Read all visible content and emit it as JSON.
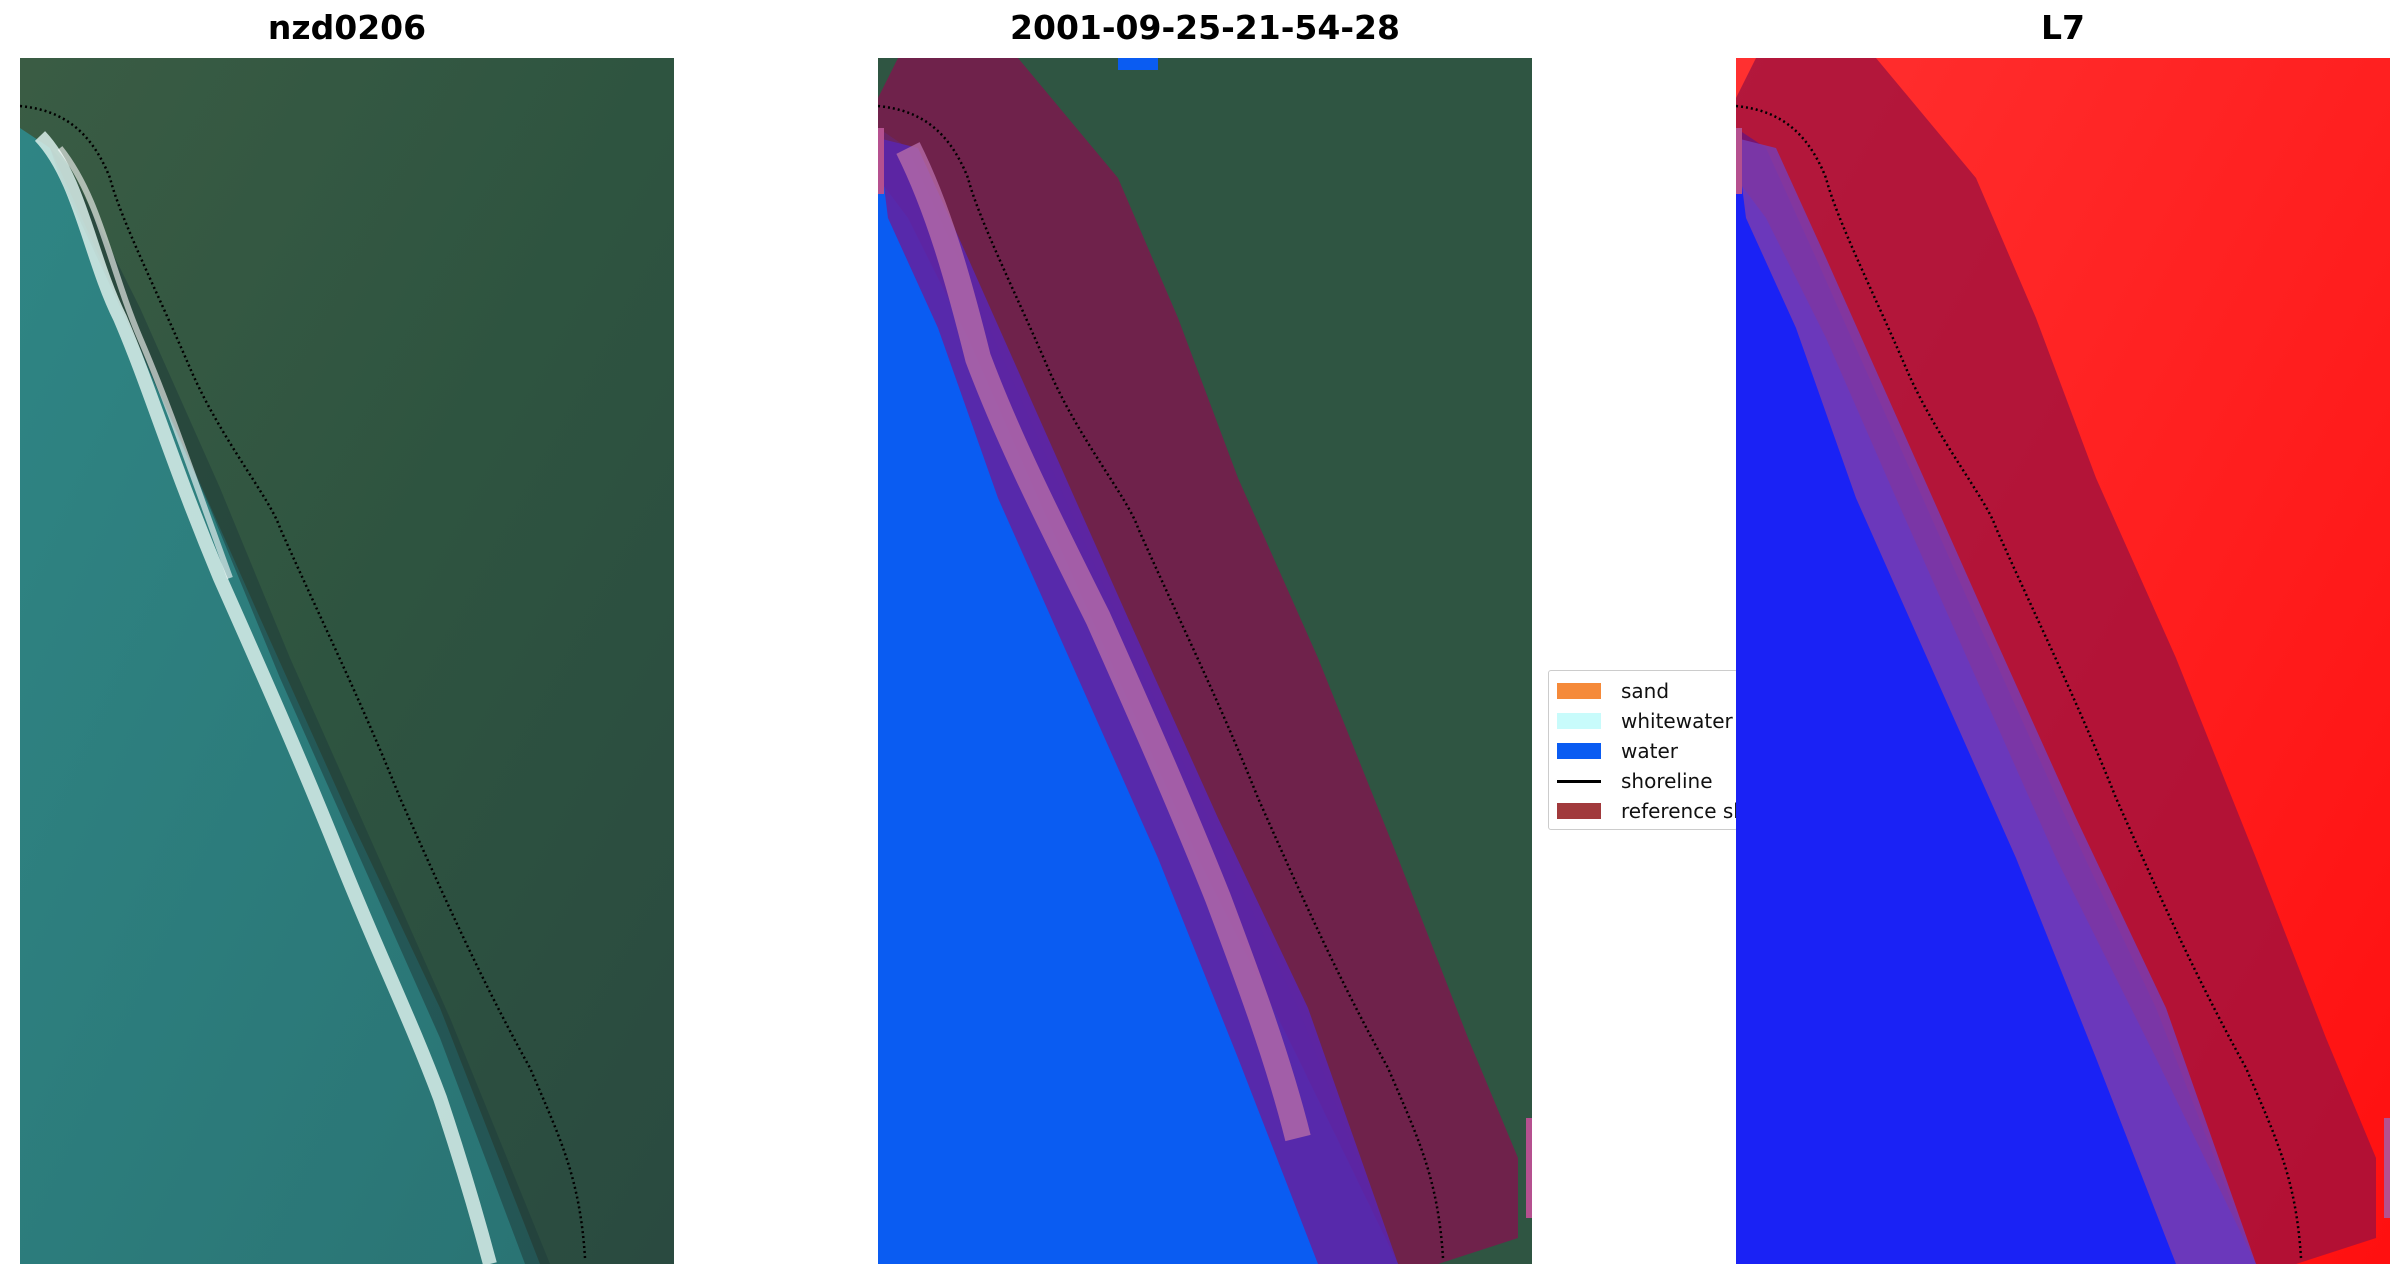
{
  "panels": {
    "left_title": "nzd0206",
    "middle_title": "2001-09-25-21-54-28",
    "right_title": "L7"
  },
  "legend": {
    "items": [
      {
        "label": "sand",
        "color": "#f58a3a"
      },
      {
        "label": "whitewater",
        "color": "#c8fbfb"
      },
      {
        "label": "water",
        "color": "#0a5cf2"
      },
      {
        "label": "shoreline",
        "color": "#000000"
      },
      {
        "label": "reference sh",
        "color": "#a13a3c"
      }
    ]
  },
  "colors": {
    "ocean_rgb": "#2d7b7b",
    "land_rgb": "#2f5a44",
    "water_class": "#0a5cf2",
    "reference_band": "#8a1c4a",
    "index_land": "#ff1a1a",
    "index_water": "#1a22f5"
  }
}
